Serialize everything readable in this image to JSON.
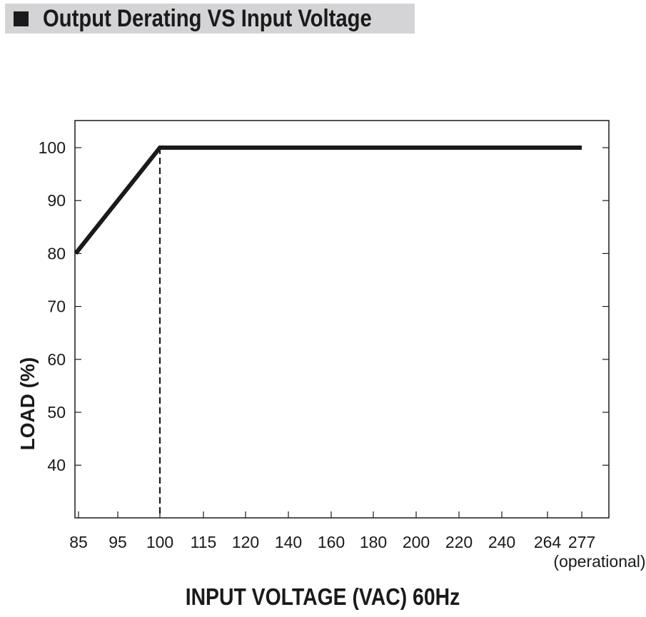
{
  "header": {
    "title": "Output Derating VS Input Voltage"
  },
  "colors": {
    "header_background": "#d4d4d6",
    "line": "#1a1a1a",
    "frame": "#1a1a1a",
    "background": "#ffffff"
  },
  "chart_data": {
    "type": "line",
    "title": "Output Derating VS Input Voltage",
    "xlabel": "INPUT VOLTAGE (VAC) 60Hz",
    "ylabel": "LOAD (%)",
    "x_categories": [
      "85",
      "95",
      "100",
      "115",
      "120",
      "140",
      "160",
      "180",
      "200",
      "220",
      "240",
      "264",
      "277"
    ],
    "x_tick_note": "(operational)",
    "y_ticks": [
      40,
      50,
      60,
      70,
      80,
      90,
      100
    ],
    "series": [
      {
        "x": [
          "85",
          "100",
          "277"
        ],
        "y": [
          80,
          100,
          100
        ]
      }
    ],
    "reference_lines": [
      {
        "x": "100",
        "style": "dashed"
      }
    ],
    "grid": false,
    "legend": "none"
  }
}
